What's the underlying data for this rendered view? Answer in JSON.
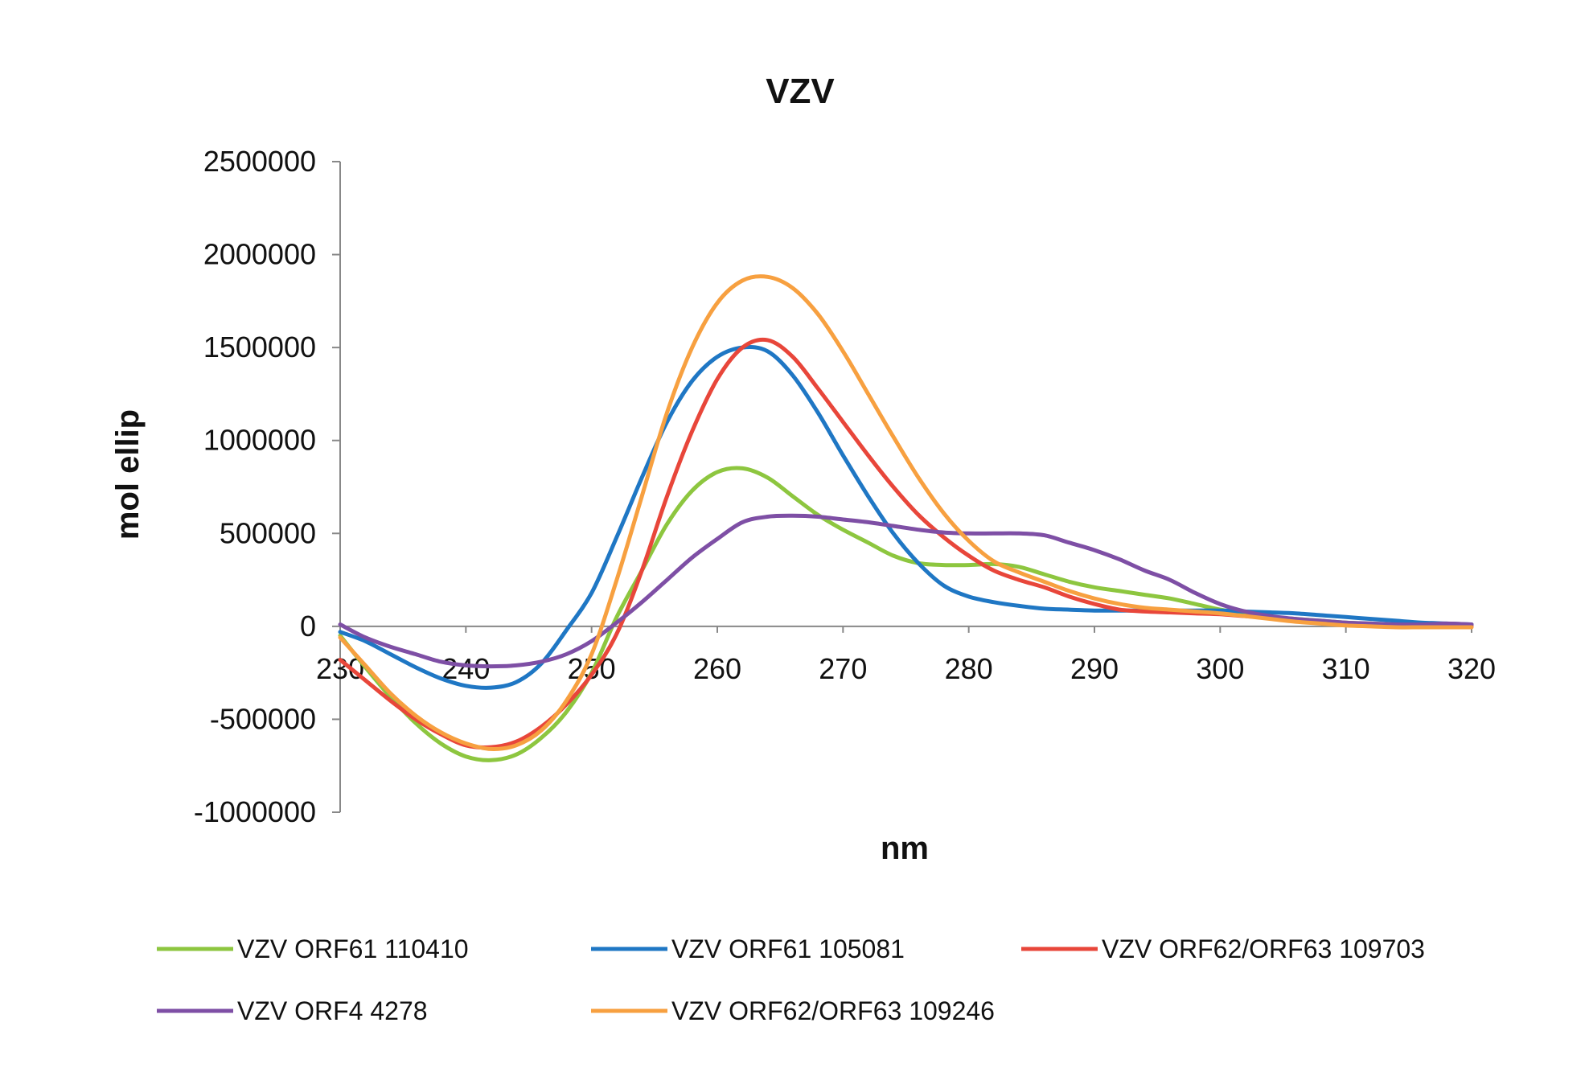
{
  "chart_data": {
    "type": "line",
    "title": "VZV",
    "xlabel": "nm",
    "ylabel": "mol ellip",
    "xlim": [
      230,
      320
    ],
    "ylim": [
      -1000000,
      2500000
    ],
    "x_ticks": [
      230,
      240,
      250,
      260,
      270,
      280,
      290,
      300,
      310,
      320
    ],
    "y_ticks": [
      -1000000,
      -500000,
      0,
      500000,
      1000000,
      1500000,
      2000000,
      2500000
    ],
    "x_tick_labels": [
      "230",
      "240",
      "250",
      "260",
      "270",
      "280",
      "290",
      "300",
      "310",
      "320"
    ],
    "y_tick_labels": [
      "-1000000",
      "-500000",
      "0",
      "500000",
      "1000000",
      "1500000",
      "2000000",
      "2500000"
    ],
    "grid": false,
    "legend_position": "bottom",
    "series": [
      {
        "name": "VZV ORF61 110410",
        "color": "#8DC63F",
        "x": [
          230,
          232,
          234,
          236,
          238,
          240,
          242,
          244,
          246,
          248,
          250,
          252,
          254,
          256,
          258,
          260,
          262,
          264,
          266,
          268,
          270,
          272,
          274,
          276,
          278,
          280,
          282,
          284,
          286,
          288,
          290,
          292,
          294,
          296,
          298,
          300,
          302,
          304,
          306,
          308,
          310,
          312,
          314,
          316,
          318,
          320
        ],
        "y": [
          -50000,
          -220000,
          -380000,
          -520000,
          -630000,
          -700000,
          -720000,
          -690000,
          -600000,
          -460000,
          -250000,
          50000,
          300000,
          550000,
          730000,
          830000,
          850000,
          800000,
          700000,
          600000,
          520000,
          450000,
          380000,
          340000,
          330000,
          330000,
          335000,
          320000,
          280000,
          240000,
          210000,
          190000,
          170000,
          150000,
          120000,
          90000,
          70000,
          50000,
          40000,
          30000,
          20000,
          15000,
          10000,
          10000,
          10000,
          10000
        ]
      },
      {
        "name": "VZV ORF61 105081",
        "color": "#1F77C4",
        "x": [
          230,
          232,
          234,
          236,
          238,
          240,
          242,
          244,
          246,
          248,
          250,
          252,
          254,
          256,
          258,
          260,
          262,
          264,
          266,
          268,
          270,
          272,
          274,
          276,
          278,
          280,
          282,
          284,
          286,
          288,
          290,
          292,
          294,
          296,
          298,
          300,
          302,
          304,
          306,
          308,
          310,
          312,
          314,
          316,
          318,
          320
        ],
        "y": [
          -30000,
          -80000,
          -150000,
          -220000,
          -280000,
          -320000,
          -330000,
          -300000,
          -200000,
          -20000,
          180000,
          480000,
          800000,
          1100000,
          1320000,
          1450000,
          1500000,
          1480000,
          1350000,
          1150000,
          920000,
          700000,
          500000,
          340000,
          220000,
          160000,
          130000,
          110000,
          95000,
          90000,
          85000,
          85000,
          85000,
          85000,
          85000,
          85000,
          80000,
          75000,
          70000,
          60000,
          50000,
          40000,
          30000,
          20000,
          15000,
          10000
        ]
      },
      {
        "name": "VZV ORF62/ORF63 109703",
        "color": "#E8463A",
        "x": [
          230,
          232,
          234,
          236,
          238,
          240,
          242,
          244,
          246,
          248,
          250,
          252,
          254,
          256,
          258,
          260,
          262,
          264,
          266,
          268,
          270,
          272,
          274,
          276,
          278,
          280,
          282,
          284,
          286,
          288,
          290,
          292,
          294,
          296,
          298,
          300,
          302,
          304,
          306,
          308,
          310,
          312,
          314,
          316,
          318,
          320
        ],
        "y": [
          -180000,
          -290000,
          -400000,
          -500000,
          -580000,
          -640000,
          -650000,
          -620000,
          -540000,
          -420000,
          -260000,
          -40000,
          300000,
          700000,
          1050000,
          1330000,
          1500000,
          1540000,
          1450000,
          1280000,
          1100000,
          920000,
          750000,
          600000,
          480000,
          380000,
          300000,
          250000,
          210000,
          160000,
          120000,
          90000,
          80000,
          75000,
          70000,
          65000,
          55000,
          45000,
          30000,
          20000,
          10000,
          5000,
          0,
          0,
          0,
          0
        ]
      },
      {
        "name": "VZV ORF4 4278",
        "color": "#7E4FA5",
        "x": [
          230,
          232,
          234,
          236,
          238,
          240,
          242,
          244,
          246,
          248,
          250,
          252,
          254,
          256,
          258,
          260,
          262,
          264,
          266,
          268,
          270,
          272,
          274,
          276,
          278,
          280,
          282,
          284,
          286,
          288,
          290,
          292,
          294,
          296,
          298,
          300,
          302,
          304,
          306,
          308,
          310,
          312,
          314,
          316,
          318,
          320
        ],
        "y": [
          10000,
          -60000,
          -110000,
          -150000,
          -190000,
          -210000,
          -215000,
          -210000,
          -190000,
          -150000,
          -80000,
          20000,
          130000,
          250000,
          370000,
          470000,
          560000,
          590000,
          595000,
          590000,
          575000,
          560000,
          540000,
          520000,
          505000,
          500000,
          500000,
          500000,
          490000,
          450000,
          410000,
          360000,
          300000,
          250000,
          180000,
          120000,
          80000,
          55000,
          40000,
          30000,
          20000,
          15000,
          10000,
          10000,
          15000,
          10000
        ]
      },
      {
        "name": "VZV ORF62/ORF63 109246",
        "color": "#F7A040",
        "x": [
          230,
          232,
          234,
          236,
          238,
          240,
          242,
          244,
          246,
          248,
          250,
          252,
          254,
          256,
          258,
          260,
          262,
          264,
          266,
          268,
          270,
          272,
          274,
          276,
          278,
          280,
          282,
          284,
          286,
          288,
          290,
          292,
          294,
          296,
          298,
          300,
          302,
          304,
          306,
          308,
          310,
          312,
          314,
          316,
          318,
          320
        ],
        "y": [
          -60000,
          -210000,
          -360000,
          -480000,
          -570000,
          -630000,
          -660000,
          -640000,
          -560000,
          -400000,
          -150000,
          250000,
          700000,
          1150000,
          1500000,
          1740000,
          1860000,
          1880000,
          1820000,
          1680000,
          1480000,
          1250000,
          1020000,
          800000,
          610000,
          460000,
          350000,
          290000,
          240000,
          190000,
          150000,
          120000,
          100000,
          90000,
          80000,
          70000,
          55000,
          40000,
          25000,
          15000,
          5000,
          0,
          -5000,
          -5000,
          -5000,
          -5000
        ]
      }
    ]
  }
}
